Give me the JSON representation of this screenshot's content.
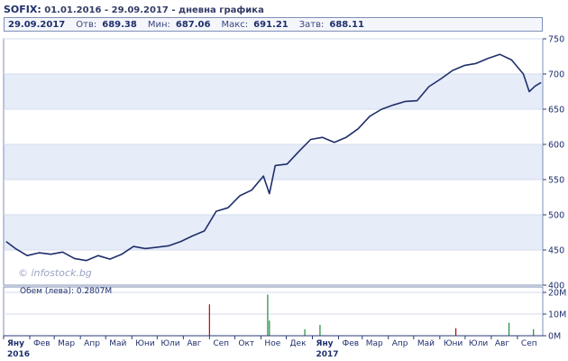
{
  "header": {
    "symbol": "SOFIX:",
    "range": "01.01.2016 - 29.09.2017 - дневна графика"
  },
  "quote": {
    "date": "29.09.2017",
    "open_label": "Отв:",
    "open": "689.38",
    "min_label": "Мин:",
    "min": "687.06",
    "max_label": "Макс:",
    "max": "691.21",
    "close_label": "Затв:",
    "close": "688.11"
  },
  "watermark": "© infostock.bg",
  "volume_label": "Обем (лева): 0.2807M",
  "chart_data": [
    {
      "type": "line",
      "y_ticks": [
        "750",
        "700",
        "650",
        "600",
        "550",
        "500",
        "450",
        "400"
      ],
      "ylim": [
        400,
        750
      ],
      "x_ticks": [
        "Яну",
        "Фев",
        "Мар",
        "Апр",
        "Май",
        "Юни",
        "Юли",
        "Авг",
        "Сеп",
        "Окт",
        "Ное",
        "Дек",
        "Яну",
        "Фев",
        "Мар",
        "Апр",
        "Май",
        "Юни",
        "Юли",
        "Авг",
        "Сеп"
      ],
      "year_labels": [
        "2016",
        "2017"
      ],
      "grid": true,
      "x": [
        "2016-01-04",
        "2016-01-15",
        "2016-01-29",
        "2016-02-12",
        "2016-02-26",
        "2016-03-11",
        "2016-03-25",
        "2016-04-08",
        "2016-04-22",
        "2016-05-06",
        "2016-05-20",
        "2016-06-03",
        "2016-06-17",
        "2016-07-01",
        "2016-07-15",
        "2016-07-29",
        "2016-08-12",
        "2016-08-26",
        "2016-09-09",
        "2016-09-23",
        "2016-10-07",
        "2016-10-21",
        "2016-11-04",
        "2016-11-11",
        "2016-11-18",
        "2016-12-02",
        "2016-12-16",
        "2016-12-30",
        "2017-01-13",
        "2017-01-27",
        "2017-02-10",
        "2017-02-24",
        "2017-03-10",
        "2017-03-24",
        "2017-04-07",
        "2017-04-21",
        "2017-05-05",
        "2017-05-19",
        "2017-06-02",
        "2017-06-16",
        "2017-06-30",
        "2017-07-14",
        "2017-07-28",
        "2017-08-11",
        "2017-08-25",
        "2017-09-08",
        "2017-09-15",
        "2017-09-22",
        "2017-09-29"
      ],
      "series": [
        {
          "values": [
            462,
            452,
            442,
            446,
            444,
            447,
            438,
            435,
            442,
            437,
            444,
            455,
            452,
            454,
            456,
            462,
            470,
            477,
            505,
            510,
            527,
            535,
            555,
            530,
            570,
            572,
            590,
            607,
            610,
            603,
            610,
            622,
            640,
            650,
            656,
            661,
            662,
            682,
            693,
            705,
            712,
            715,
            722,
            728,
            720,
            700,
            675,
            683,
            688
          ]
        }
      ]
    },
    {
      "type": "bar",
      "y_ticks": [
        "20M",
        "10M",
        "0M"
      ],
      "ylim": [
        0,
        20
      ],
      "spikes": [
        {
          "x": "2016-09-01",
          "value": 14.5,
          "color": "#c00000"
        },
        {
          "x": "2016-11-09",
          "value": 19.0,
          "color": "#1a8c3a"
        },
        {
          "x": "2016-11-11",
          "value": 7.0,
          "color": "#1a8c3a"
        },
        {
          "x": "2016-12-23",
          "value": 3.0,
          "color": "#1a8c3a"
        },
        {
          "x": "2017-01-10",
          "value": 5.0,
          "color": "#1a8c3a"
        },
        {
          "x": "2017-06-20",
          "value": 3.5,
          "color": "#c00000"
        },
        {
          "x": "2017-08-22",
          "value": 6.0,
          "color": "#1a8c3a"
        },
        {
          "x": "2017-09-20",
          "value": 3.0,
          "color": "#1a8c3a"
        }
      ]
    }
  ],
  "colors": {
    "line": "#1f2f6b",
    "band": "#e6ecf8",
    "axis": "#2a3a7a",
    "up": "#1a8c3a",
    "down": "#c00000"
  }
}
